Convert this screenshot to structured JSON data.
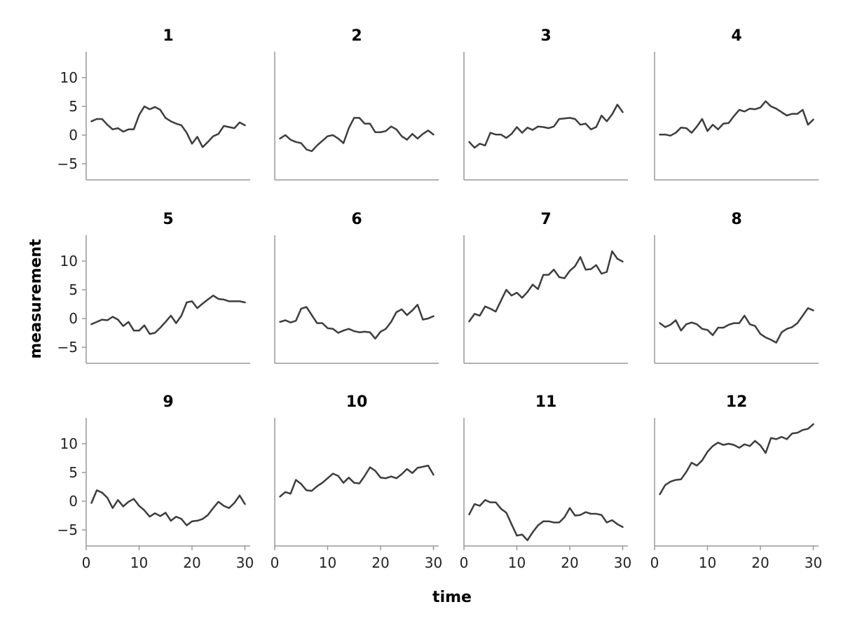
{
  "chart_data": {
    "type": "line",
    "layout": "facet-grid",
    "rows": 3,
    "cols": 4,
    "xlabel": "time",
    "ylabel": "measurement",
    "xlim": [
      0,
      31
    ],
    "ylim": [
      -7.8,
      14.5
    ],
    "xticks": [
      0,
      10,
      20,
      30
    ],
    "yticks": [
      -5,
      0,
      5,
      10
    ],
    "line_color": "#3d3d3d",
    "axis_color": "#999999",
    "grid": false,
    "x": [
      1,
      2,
      3,
      4,
      5,
      6,
      7,
      8,
      9,
      10,
      11,
      12,
      13,
      14,
      15,
      16,
      17,
      18,
      19,
      20,
      21,
      22,
      23,
      24,
      25,
      26,
      27,
      28,
      29,
      30
    ],
    "panels": [
      {
        "title": "1",
        "values": [
          2.4,
          2.8,
          2.8,
          1.8,
          1.0,
          1.2,
          0.6,
          1.0,
          1.0,
          3.5,
          5.0,
          4.5,
          4.9,
          4.4,
          3.0,
          2.4,
          2.0,
          1.7,
          0.4,
          -1.5,
          -0.3,
          -2.1,
          -1.2,
          -0.2,
          0.2,
          1.6,
          1.4,
          1.2,
          2.2,
          1.7
        ]
      },
      {
        "title": "2",
        "values": [
          -0.6,
          0.0,
          -0.8,
          -1.2,
          -1.4,
          -2.5,
          -2.8,
          -1.8,
          -1.0,
          -0.2,
          0.0,
          -0.6,
          -1.4,
          1.2,
          3.0,
          3.0,
          2.0,
          2.0,
          0.5,
          0.5,
          0.7,
          1.5,
          1.0,
          -0.2,
          -0.8,
          0.2,
          -0.6,
          0.2,
          0.8,
          0.1
        ]
      },
      {
        "title": "3",
        "values": [
          -1.2,
          -2.2,
          -1.5,
          -1.8,
          0.4,
          0.1,
          0.1,
          -0.5,
          0.2,
          1.4,
          0.4,
          1.3,
          0.9,
          1.5,
          1.4,
          1.2,
          1.5,
          2.8,
          2.9,
          3.0,
          2.8,
          1.8,
          2.0,
          1.0,
          1.4,
          3.4,
          2.4,
          3.6,
          5.3,
          4.0
        ]
      },
      {
        "title": "4",
        "values": [
          0.1,
          0.1,
          -0.1,
          0.4,
          1.3,
          1.2,
          0.4,
          1.5,
          2.8,
          0.7,
          1.8,
          1.0,
          2.0,
          2.1,
          3.3,
          4.4,
          4.1,
          4.6,
          4.5,
          4.8,
          5.9,
          5.0,
          4.6,
          4.0,
          3.4,
          3.7,
          3.7,
          4.4,
          1.8,
          2.7
        ]
      },
      {
        "title": "5",
        "values": [
          -1.0,
          -0.6,
          -0.2,
          -0.3,
          0.3,
          -0.2,
          -1.3,
          -0.6,
          -2.1,
          -2.1,
          -1.2,
          -2.7,
          -2.5,
          -1.6,
          -0.6,
          0.5,
          -0.8,
          0.5,
          2.8,
          3.0,
          1.8,
          2.6,
          3.3,
          4.0,
          3.4,
          3.3,
          3.0,
          3.0,
          3.0,
          2.8
        ]
      },
      {
        "title": "6",
        "values": [
          -0.6,
          -0.3,
          -0.7,
          -0.4,
          1.7,
          2.0,
          0.6,
          -0.8,
          -0.8,
          -1.7,
          -1.8,
          -2.5,
          -2.1,
          -1.8,
          -2.2,
          -2.4,
          -2.3,
          -2.4,
          -3.5,
          -2.3,
          -1.8,
          -0.6,
          1.1,
          1.6,
          0.6,
          1.4,
          2.4,
          -0.2,
          0.0,
          0.4
        ]
      },
      {
        "title": "7",
        "values": [
          -0.5,
          0.8,
          0.5,
          2.1,
          1.7,
          1.2,
          3.1,
          5.0,
          4.0,
          4.5,
          3.6,
          4.6,
          5.9,
          5.1,
          7.6,
          7.6,
          8.5,
          7.2,
          7.0,
          8.3,
          9.1,
          10.7,
          8.5,
          8.6,
          9.3,
          7.8,
          8.1,
          11.7,
          10.4,
          9.9
        ]
      },
      {
        "title": "8",
        "values": [
          -0.8,
          -1.5,
          -1.1,
          -0.3,
          -2.1,
          -1.0,
          -0.7,
          -1.0,
          -1.8,
          -2.0,
          -2.9,
          -1.6,
          -1.6,
          -1.1,
          -0.8,
          -0.8,
          0.5,
          -1.0,
          -1.3,
          -2.7,
          -3.3,
          -3.7,
          -4.2,
          -2.4,
          -1.8,
          -1.5,
          -0.8,
          0.5,
          1.8,
          1.4
        ]
      },
      {
        "title": "9",
        "values": [
          -0.3,
          1.9,
          1.5,
          0.6,
          -1.2,
          0.2,
          -0.9,
          -0.1,
          0.4,
          -0.8,
          -1.6,
          -2.7,
          -2.1,
          -2.6,
          -2.0,
          -3.4,
          -2.7,
          -3.1,
          -4.2,
          -3.5,
          -3.4,
          -3.1,
          -2.4,
          -1.2,
          -0.1,
          -0.8,
          -1.2,
          -0.3,
          1.0,
          -0.5
        ]
      },
      {
        "title": "10",
        "values": [
          0.8,
          1.6,
          1.3,
          3.7,
          3.0,
          1.9,
          1.8,
          2.6,
          3.2,
          4.0,
          4.8,
          4.4,
          3.2,
          4.1,
          3.2,
          3.1,
          4.4,
          5.9,
          5.3,
          4.1,
          4.0,
          4.3,
          4.0,
          4.7,
          5.6,
          4.9,
          5.8,
          6.0,
          6.2,
          4.6
        ]
      },
      {
        "title": "11",
        "values": [
          -2.3,
          -0.5,
          -0.8,
          0.2,
          -0.2,
          -0.2,
          -1.3,
          -2.0,
          -4.0,
          -6.0,
          -5.8,
          -6.8,
          -5.4,
          -4.2,
          -3.5,
          -3.5,
          -3.7,
          -3.7,
          -2.8,
          -1.2,
          -2.5,
          -2.4,
          -1.9,
          -2.2,
          -2.2,
          -2.4,
          -3.7,
          -3.3,
          -4.0,
          -4.5
        ]
      },
      {
        "title": "12",
        "values": [
          1.2,
          2.8,
          3.4,
          3.7,
          3.8,
          5.1,
          6.7,
          6.2,
          7.1,
          8.6,
          9.6,
          10.2,
          9.8,
          10.0,
          9.8,
          9.3,
          9.9,
          9.6,
          10.5,
          9.7,
          8.4,
          11.0,
          10.8,
          11.2,
          10.8,
          11.8,
          11.9,
          12.4,
          12.6,
          13.4
        ]
      }
    ]
  }
}
